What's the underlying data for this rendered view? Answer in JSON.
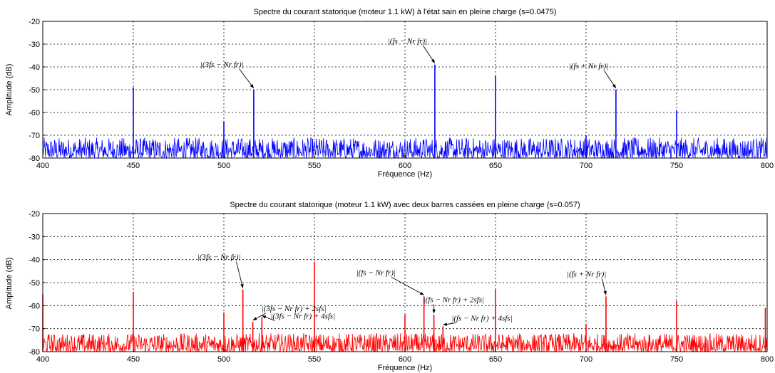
{
  "chart_data": [
    {
      "type": "line",
      "title": "Spectre du courant statorique (moteur 1.1 kW) à l'état sain en pleine charge (s=0.0475)",
      "xlabel": "Fréquence (Hz)",
      "ylabel": "Amplitude (dB)",
      "xlim": [
        400,
        800
      ],
      "ylim": [
        -80,
        -20
      ],
      "xticks": [
        400,
        450,
        500,
        550,
        600,
        650,
        700,
        750,
        800
      ],
      "yticks": [
        -20,
        -30,
        -40,
        -50,
        -60,
        -70,
        -80
      ],
      "grid": "dotted",
      "color": "#0000ff",
      "noise_floor": [
        -80,
        -71
      ],
      "peaks": [
        {
          "x": 450,
          "y": -49
        },
        {
          "x": 500,
          "y": -64
        },
        {
          "x": 516.5,
          "y": -50
        },
        {
          "x": 616.5,
          "y": -39
        },
        {
          "x": 650,
          "y": -44
        },
        {
          "x": 700,
          "y": -70
        },
        {
          "x": 716.5,
          "y": -50
        },
        {
          "x": 750,
          "y": -59
        }
      ],
      "annotations": [
        {
          "text": "|(3f_s − N_r f_r)|",
          "x": 516.5,
          "y": -50
        },
        {
          "text": "|(f_s − N_r f_r)|",
          "x": 616.5,
          "y": -39
        },
        {
          "text": "|(f_s + N_r f_r)|",
          "x": 716.5,
          "y": -50
        }
      ]
    },
    {
      "type": "line",
      "title": "Spectre du courant statorique (moteur 1.1 kW) avec deux barres cassées en pleine charge (s=0.057)",
      "xlabel": "Fréquence (Hz)",
      "ylabel": "Amplitude (dB)",
      "xlim": [
        400,
        800
      ],
      "ylim": [
        -80,
        -20
      ],
      "xticks": [
        400,
        450,
        500,
        550,
        600,
        650,
        700,
        750,
        800
      ],
      "yticks": [
        -20,
        -30,
        -40,
        -50,
        -60,
        -70,
        -80
      ],
      "grid": "dotted",
      "color": "#ff0000",
      "noise_floor": [
        -80,
        -72
      ],
      "peaks": [
        {
          "x": 400,
          "y": -55
        },
        {
          "x": 450,
          "y": -54
        },
        {
          "x": 500,
          "y": -63
        },
        {
          "x": 510.5,
          "y": -53
        },
        {
          "x": 516,
          "y": -67
        },
        {
          "x": 521,
          "y": -65
        },
        {
          "x": 550,
          "y": -41
        },
        {
          "x": 600,
          "y": -64
        },
        {
          "x": 610.5,
          "y": -56
        },
        {
          "x": 616,
          "y": -64
        },
        {
          "x": 621,
          "y": -69
        },
        {
          "x": 650,
          "y": -53
        },
        {
          "x": 700,
          "y": -68
        },
        {
          "x": 711,
          "y": -56
        },
        {
          "x": 750,
          "y": -58
        },
        {
          "x": 799,
          "y": -61
        }
      ],
      "annotations": [
        {
          "text": "|(3f_s − N_r f_r)|",
          "x": 510.5,
          "y": -53
        },
        {
          "text": "|(3f_s − N_r f_r) + 2sf_s|",
          "x": 516,
          "y": -67
        },
        {
          "text": "|(3f_s − N_r f_r) + 4sf_s|",
          "x": 521,
          "y": -65
        },
        {
          "text": "|(f_s − N_r f_r)|",
          "x": 610.5,
          "y": -56
        },
        {
          "text": "|(f_s − N_r f_r) + 2sf_s|",
          "x": 616,
          "y": -64
        },
        {
          "text": "|(f_s − N_r f_r) + 4sf_s|",
          "x": 621,
          "y": -69
        },
        {
          "text": "|(f_s + N_r f_r)|",
          "x": 711,
          "y": -56
        }
      ]
    }
  ]
}
